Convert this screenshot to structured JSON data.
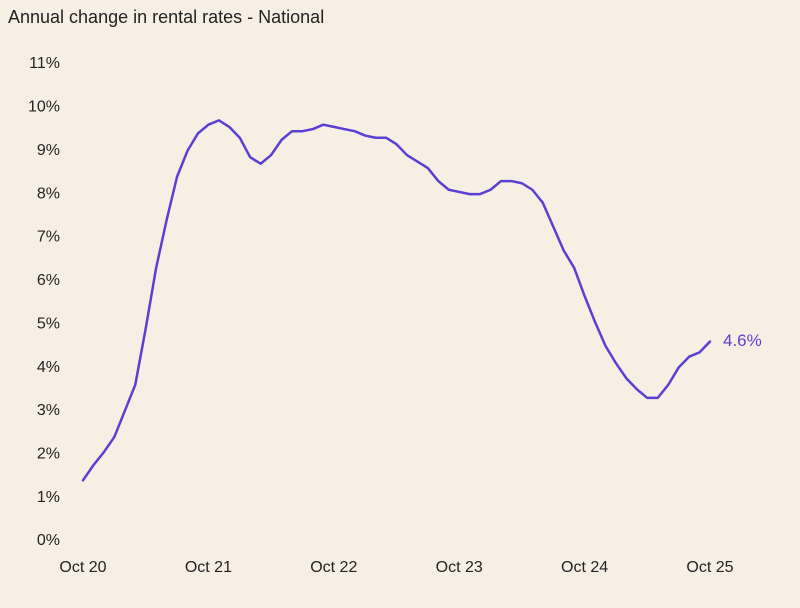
{
  "chart_data": {
    "type": "line",
    "title": "Annual change in rental rates - National",
    "categories": [
      "Oct 20",
      null,
      null,
      null,
      null,
      null,
      null,
      null,
      null,
      null,
      null,
      null,
      "Oct 21",
      null,
      null,
      null,
      null,
      null,
      null,
      null,
      null,
      null,
      null,
      null,
      "Oct 22",
      null,
      null,
      null,
      null,
      null,
      null,
      null,
      null,
      null,
      null,
      null,
      "Oct 23",
      null,
      null,
      null,
      null,
      null,
      null,
      null,
      null,
      null,
      null,
      null,
      "Oct 24",
      null,
      null,
      null,
      null,
      null,
      null,
      null,
      null,
      null,
      null,
      null,
      "Oct 25"
    ],
    "values": [
      1.4,
      1.75,
      2.05,
      2.4,
      3.0,
      3.6,
      4.9,
      6.3,
      7.4,
      8.4,
      9.0,
      9.4,
      9.6,
      9.7,
      9.55,
      9.3,
      8.85,
      8.7,
      8.9,
      9.25,
      9.45,
      9.45,
      9.5,
      9.6,
      9.55,
      9.5,
      9.45,
      9.35,
      9.3,
      9.3,
      9.15,
      8.9,
      8.75,
      8.6,
      8.3,
      8.1,
      8.05,
      8.0,
      8.0,
      8.1,
      8.3,
      8.3,
      8.25,
      8.1,
      7.8,
      7.25,
      6.7,
      6.3,
      5.65,
      5.05,
      4.5,
      4.1,
      3.75,
      3.5,
      3.3,
      3.3,
      3.6,
      4.0,
      4.25,
      4.35,
      4.6
    ],
    "value_labels": [
      null,
      null,
      null,
      null,
      null,
      null,
      null,
      null,
      null,
      null,
      null,
      null,
      null,
      null,
      null,
      null,
      null,
      null,
      null,
      null,
      null,
      null,
      null,
      null,
      null,
      null,
      null,
      null,
      null,
      null,
      null,
      null,
      null,
      null,
      null,
      null,
      null,
      null,
      null,
      null,
      null,
      null,
      null,
      null,
      null,
      null,
      null,
      null,
      null,
      null,
      null,
      null,
      null,
      null,
      null,
      null,
      null,
      null,
      null,
      null,
      "4.6%"
    ],
    "color": "#5b3fd3",
    "ylim": [
      0,
      11
    ],
    "yticks": [
      {
        "value": 0,
        "label": "0%"
      },
      {
        "value": 1,
        "label": "1%"
      },
      {
        "value": 2,
        "label": "2%"
      },
      {
        "value": 3,
        "label": "3%"
      },
      {
        "value": 4,
        "label": "4%"
      },
      {
        "value": 5,
        "label": "5%"
      },
      {
        "value": 6,
        "label": "6%"
      },
      {
        "value": 7,
        "label": "7%"
      },
      {
        "value": 8,
        "label": "8%"
      },
      {
        "value": 9,
        "label": "9%"
      },
      {
        "value": 10,
        "label": "10%"
      },
      {
        "value": 11,
        "label": "11%"
      }
    ],
    "grid": false
  }
}
